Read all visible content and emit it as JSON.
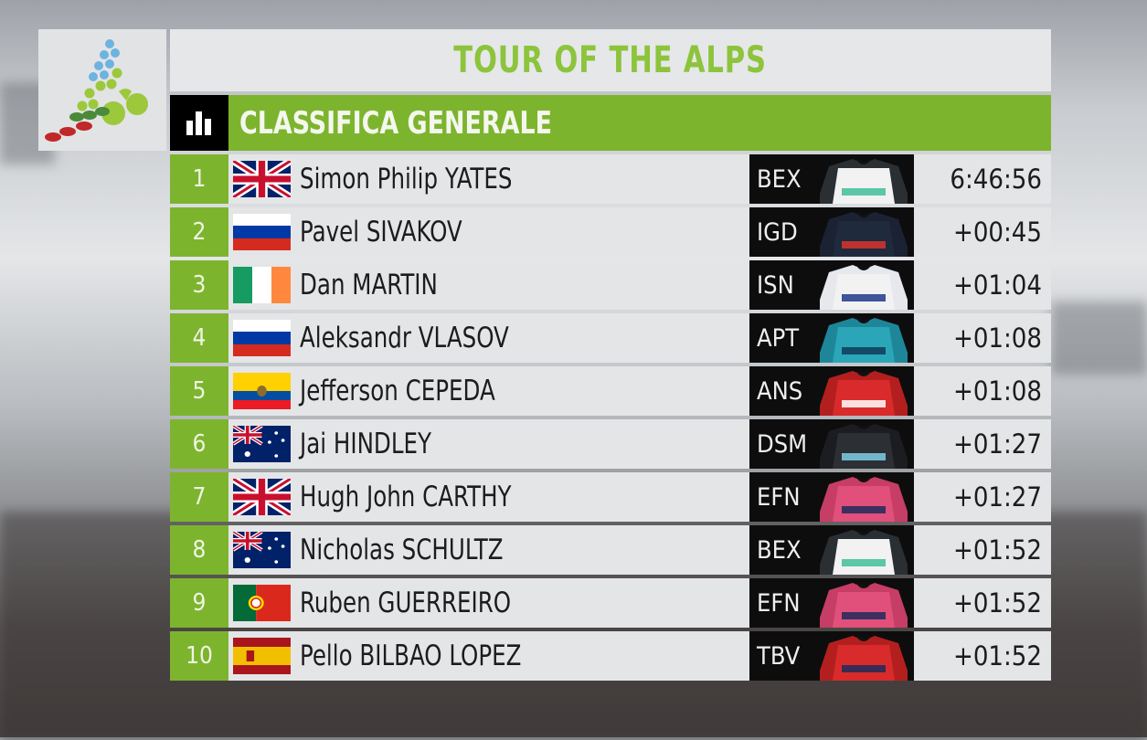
{
  "event_title": "TOUR OF THE ALPS",
  "classification_title": "CLASSIFICA GENERALE",
  "colors": {
    "accent_green": "#7db42e",
    "title_green": "#8cc43c",
    "team_box": "#0d0d0d"
  },
  "icons": {
    "header": "bar-chart-icon",
    "logo": "tour-of-the-alps-logo"
  },
  "standings": [
    {
      "pos": "1",
      "flag": "GBR",
      "name": "Simon Philip YATES",
      "team": "BEX",
      "time": "6:46:56",
      "jersey": [
        "#f2f2f2",
        "#2a2f33",
        "#3fbf9a"
      ]
    },
    {
      "pos": "2",
      "flag": "RUS",
      "name": "Pavel SIVAKOV",
      "team": "IGD",
      "time": "+00:45",
      "jersey": [
        "#1f2a3c",
        "#1a2233",
        "#d9342b"
      ]
    },
    {
      "pos": "3",
      "flag": "IRL",
      "name": "Dan MARTIN",
      "team": "ISN",
      "time": "+01:04",
      "jersey": [
        "#f2f2f2",
        "#e6e8ee",
        "#1e3a8a"
      ]
    },
    {
      "pos": "4",
      "flag": "RUS",
      "name": "Aleksandr VLASOV",
      "team": "APT",
      "time": "+01:08",
      "jersey": [
        "#2ba6b8",
        "#1d8799",
        "#0f3b57"
      ]
    },
    {
      "pos": "5",
      "flag": "ECU",
      "name": "Jefferson CEPEDA",
      "team": "ANS",
      "time": "+01:08",
      "jersey": [
        "#d92b2b",
        "#b31f1f",
        "#ffffff"
      ]
    },
    {
      "pos": "6",
      "flag": "AUS",
      "name": "Jai HINDLEY",
      "team": "DSM",
      "time": "+01:27",
      "jersey": [
        "#2c2f33",
        "#1b1d20",
        "#7ecfe8"
      ]
    },
    {
      "pos": "7",
      "flag": "GBR",
      "name": "Hugh John CARTHY",
      "team": "EFN",
      "time": "+01:27",
      "jersey": [
        "#e0507a",
        "#c63d66",
        "#1d2a5c"
      ]
    },
    {
      "pos": "8",
      "flag": "AUS",
      "name": "Nicholas SCHULTZ",
      "team": "BEX",
      "time": "+01:52",
      "jersey": [
        "#f2f2f2",
        "#2a2f33",
        "#3fbf9a"
      ]
    },
    {
      "pos": "9",
      "flag": "POR",
      "name": "Ruben GUERREIRO",
      "team": "EFN",
      "time": "+01:52",
      "jersey": [
        "#e0507a",
        "#c63d66",
        "#1d2a5c"
      ]
    },
    {
      "pos": "10",
      "flag": "ESP",
      "name": "Pello BILBAO LOPEZ",
      "team": "TBV",
      "time": "+01:52",
      "jersey": [
        "#d92b2b",
        "#b31f1f",
        "#1d2a5c"
      ]
    }
  ]
}
